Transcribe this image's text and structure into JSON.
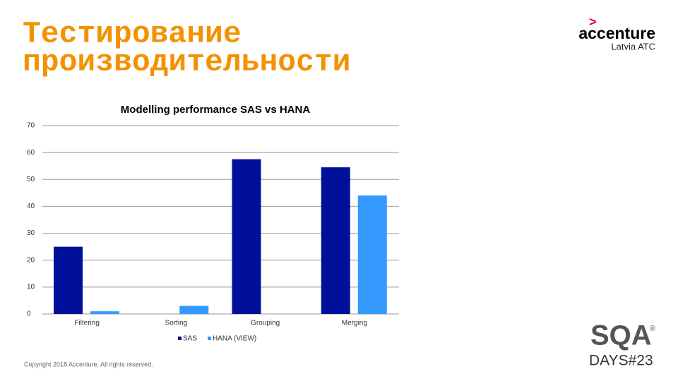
{
  "slide": {
    "title_line1": "Тестирование",
    "title_line2": "производительности",
    "logo_arrow": ">",
    "logo_name": "accenture",
    "logo_sub": "Latvia ATC",
    "copyright": "Copyright 2018 Accenture. All rights reserved.",
    "sqa_logo": "SQA",
    "sqa_registered": "®",
    "sqa_days": "DAYS#23"
  },
  "chart_data": {
    "type": "bar",
    "title": "Modelling performance SAS vs HANA",
    "categories": [
      "Filtering",
      "Sorting",
      "Grouping",
      "Merging"
    ],
    "series": [
      {
        "name": "SAS",
        "color": "#00109a",
        "values": [
          25,
          0,
          57.5,
          54.5
        ]
      },
      {
        "name": "HANA (VIEW)",
        "color": "#3399ff",
        "values": [
          1,
          3,
          0,
          44
        ]
      }
    ],
    "ylim": [
      0,
      70
    ],
    "yticks": [
      0,
      10,
      20,
      30,
      40,
      50,
      60,
      70
    ],
    "grid": true,
    "legend": "bottom"
  }
}
